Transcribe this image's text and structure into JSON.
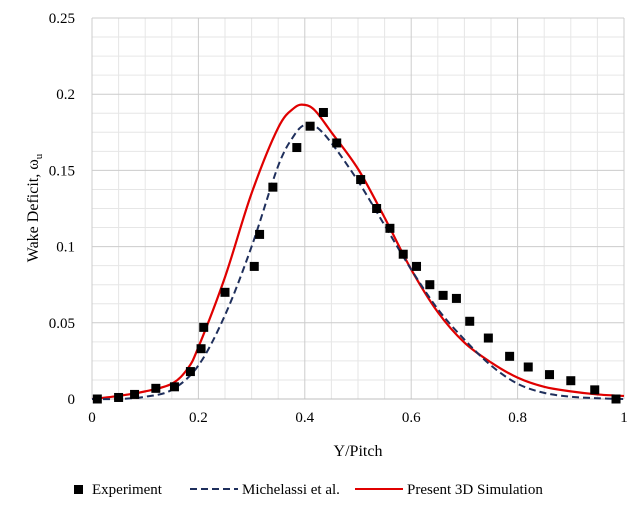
{
  "chart_data": {
    "type": "line",
    "xlabel": "Y/Pitch",
    "ylabel": "Wake Deficit, ω",
    "ylabel_subscript": "u",
    "xlim": [
      0,
      1
    ],
    "ylim": [
      0,
      0.25
    ],
    "x_ticks": [
      0,
      0.2,
      0.4,
      0.6,
      0.8,
      1
    ],
    "x_tick_labels": [
      "0",
      "0.2",
      "0.4",
      "0.6",
      "0.8",
      "1"
    ],
    "y_ticks": [
      0,
      0.05,
      0.1,
      0.15,
      0.2,
      0.25
    ],
    "y_tick_labels": [
      "0",
      "0.05",
      "0.1",
      "0.15",
      "0.2",
      "0.25"
    ],
    "grid": true,
    "legend_position": "bottom",
    "series": [
      {
        "name": "Experiment",
        "style": "markers",
        "marker": "square",
        "color": "#000000",
        "x": [
          0.01,
          0.05,
          0.08,
          0.12,
          0.155,
          0.185,
          0.205,
          0.21,
          0.25,
          0.305,
          0.315,
          0.34,
          0.385,
          0.41,
          0.435,
          0.46,
          0.505,
          0.535,
          0.56,
          0.585,
          0.61,
          0.635,
          0.66,
          0.685,
          0.71,
          0.745,
          0.785,
          0.82,
          0.86,
          0.9,
          0.945,
          0.985
        ],
        "y": [
          0.0,
          0.001,
          0.003,
          0.007,
          0.008,
          0.018,
          0.033,
          0.047,
          0.07,
          0.087,
          0.108,
          0.139,
          0.165,
          0.179,
          0.188,
          0.168,
          0.144,
          0.125,
          0.112,
          0.095,
          0.087,
          0.075,
          0.068,
          0.066,
          0.051,
          0.04,
          0.028,
          0.021,
          0.016,
          0.012,
          0.006,
          0.0
        ]
      },
      {
        "name": "Michelassi et al.",
        "style": "dashed",
        "color": "#1f2f5c",
        "x": [
          0.0,
          0.05,
          0.1,
          0.15,
          0.2,
          0.25,
          0.3,
          0.35,
          0.38,
          0.4,
          0.42,
          0.45,
          0.5,
          0.55,
          0.6,
          0.65,
          0.7,
          0.75,
          0.8,
          0.85,
          0.9,
          0.95,
          1.0
        ],
        "y": [
          0.0,
          0.0,
          0.0015,
          0.006,
          0.022,
          0.055,
          0.1,
          0.153,
          0.173,
          0.18,
          0.179,
          0.168,
          0.143,
          0.114,
          0.085,
          0.059,
          0.039,
          0.022,
          0.01,
          0.004,
          0.0015,
          0.0005,
          0.0
        ]
      },
      {
        "name": "Present 3D Simulation",
        "style": "solid",
        "color": "#e00000",
        "x": [
          0.0,
          0.05,
          0.1,
          0.15,
          0.18,
          0.2,
          0.25,
          0.3,
          0.35,
          0.38,
          0.4,
          0.42,
          0.45,
          0.5,
          0.55,
          0.6,
          0.65,
          0.7,
          0.75,
          0.8,
          0.85,
          0.9,
          0.95,
          1.0
        ],
        "y": [
          0.0,
          0.002,
          0.005,
          0.01,
          0.02,
          0.034,
          0.08,
          0.135,
          0.178,
          0.191,
          0.193,
          0.189,
          0.175,
          0.151,
          0.119,
          0.085,
          0.057,
          0.037,
          0.024,
          0.014,
          0.008,
          0.005,
          0.003,
          0.002
        ]
      }
    ]
  }
}
